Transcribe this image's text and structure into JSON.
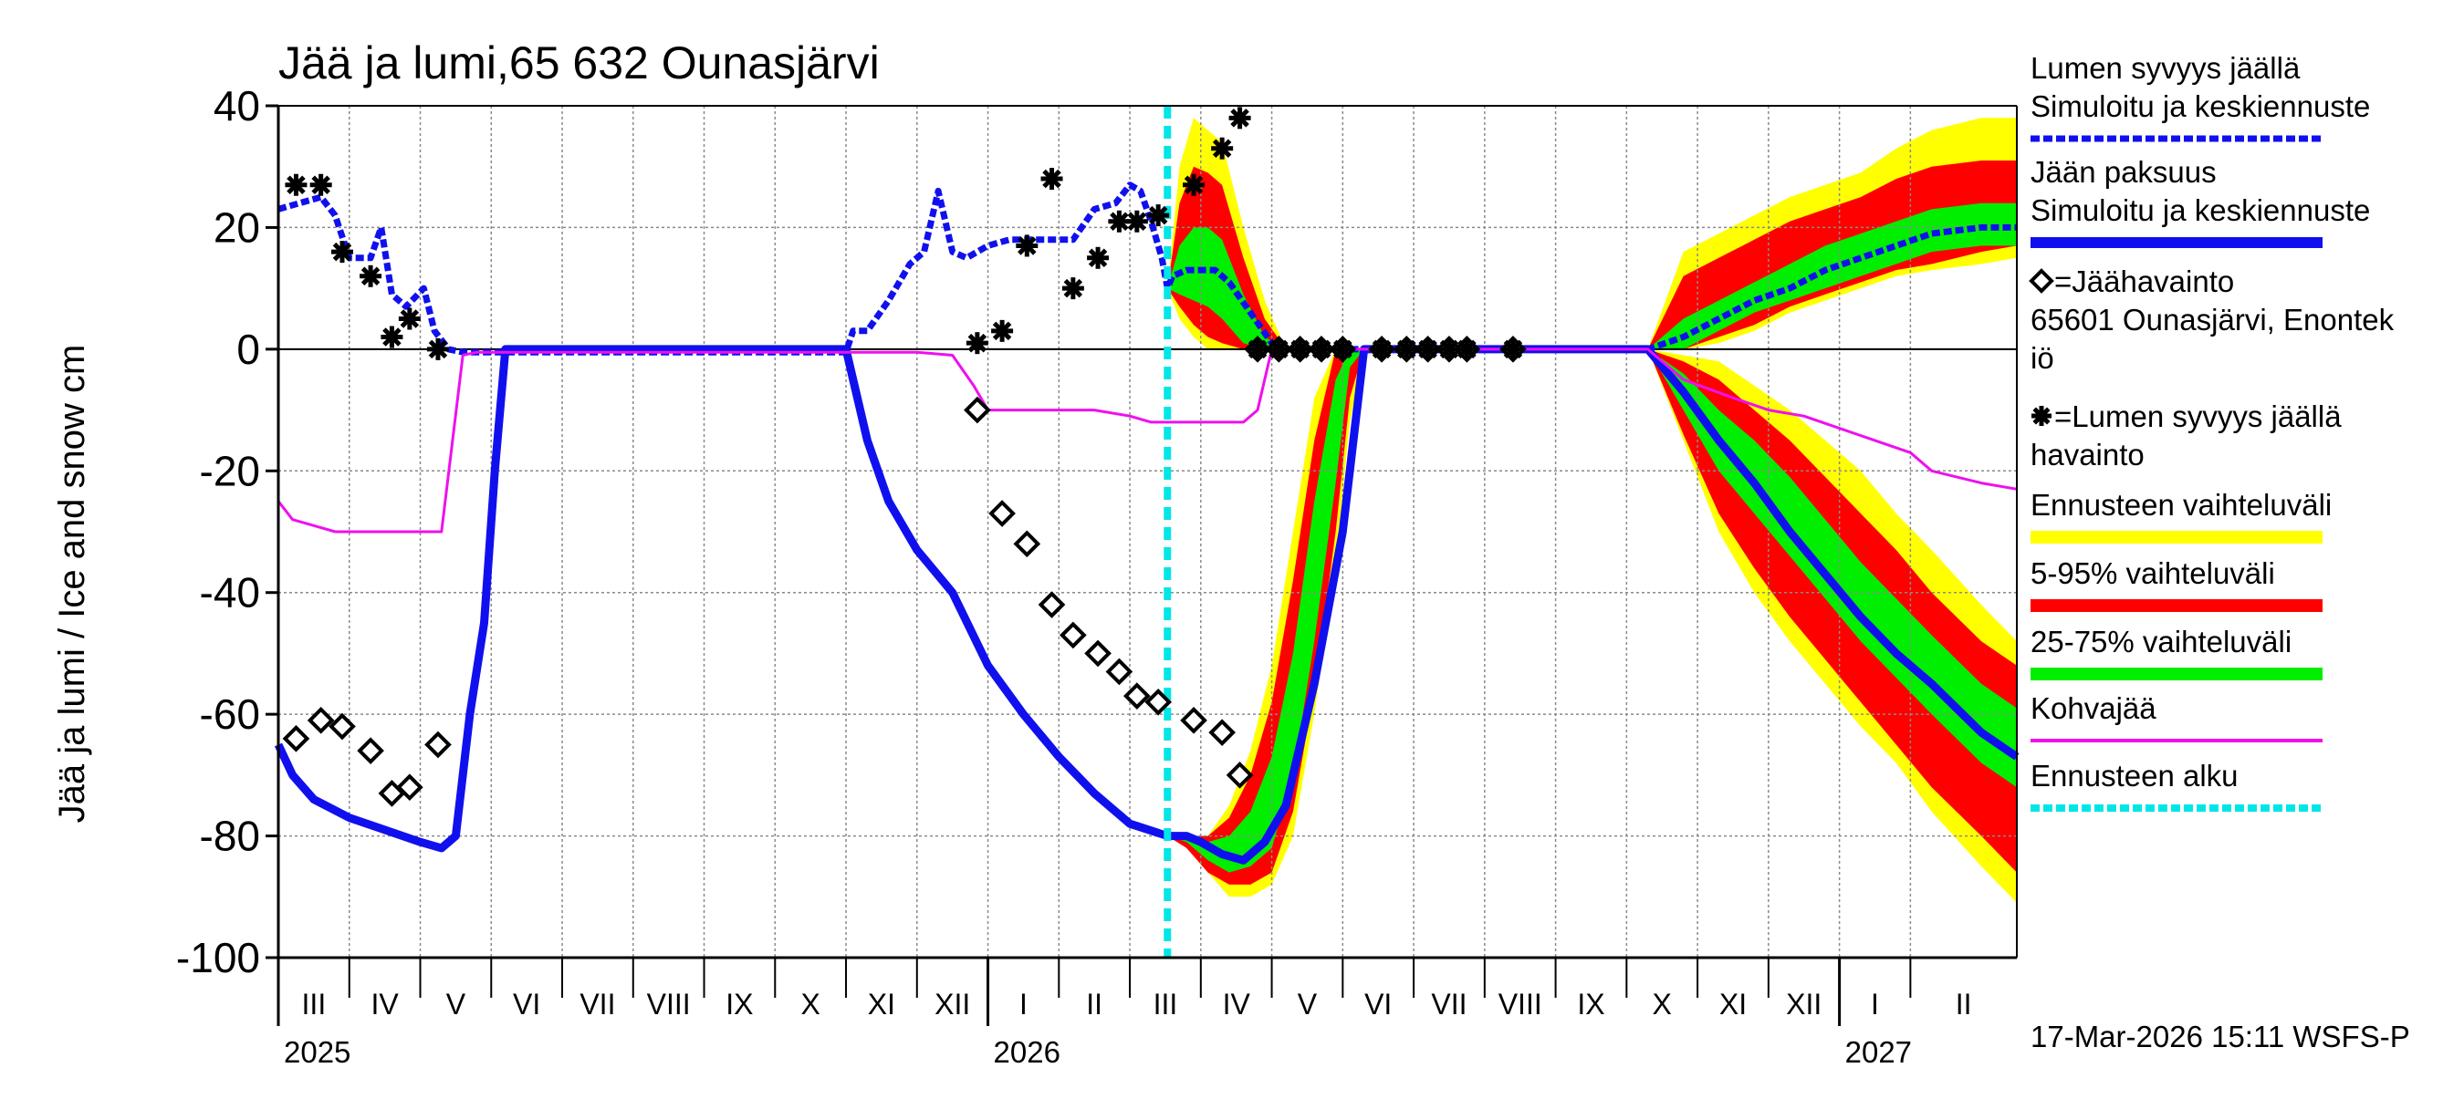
{
  "chart_data": {
    "type": "line",
    "title": "Jää ja lumi,65 632 Ounasjärvi",
    "ylabel": "Jää ja lumi / Ice and snow    cm",
    "xlabel": "",
    "ylim": [
      -100,
      40
    ],
    "yticks": [
      40,
      20,
      0,
      -20,
      -40,
      -60,
      -80,
      -100
    ],
    "x_unit": "months since 2025-03-01",
    "xlim": [
      0,
      24.5
    ],
    "forecast_start": 12.53,
    "months": [
      {
        "label": "III",
        "start": 0
      },
      {
        "label": "IV",
        "start": 1
      },
      {
        "label": "V",
        "start": 2
      },
      {
        "label": "VI",
        "start": 3
      },
      {
        "label": "VII",
        "start": 4
      },
      {
        "label": "VIII",
        "start": 5
      },
      {
        "label": "IX",
        "start": 6
      },
      {
        "label": "X",
        "start": 7
      },
      {
        "label": "XI",
        "start": 8
      },
      {
        "label": "XII",
        "start": 9
      },
      {
        "label": "I",
        "start": 10
      },
      {
        "label": "II",
        "start": 11
      },
      {
        "label": "III",
        "start": 12
      },
      {
        "label": "IV",
        "start": 13
      },
      {
        "label": "V",
        "start": 14
      },
      {
        "label": "VI",
        "start": 15
      },
      {
        "label": "VII",
        "start": 16
      },
      {
        "label": "VIII",
        "start": 17
      },
      {
        "label": "IX",
        "start": 18
      },
      {
        "label": "X",
        "start": 19
      },
      {
        "label": "XI",
        "start": 20
      },
      {
        "label": "XII",
        "start": 21
      },
      {
        "label": "I",
        "start": 22
      },
      {
        "label": "II",
        "start": 23
      }
    ],
    "years": [
      {
        "label": "2025",
        "at": 0
      },
      {
        "label": "2026",
        "at": 10
      },
      {
        "label": "2027",
        "at": 22
      }
    ],
    "footer": "17-Mar-2026 15:11 WSFS-P",
    "legend": [
      {
        "key": "snow_sim",
        "text": [
          "Lumen syvyys jäällä",
          "Simuloitu ja keskiennuste"
        ]
      },
      {
        "key": "ice_sim",
        "text": [
          "Jään paksuus",
          "Simuloitu ja keskiennuste"
        ]
      },
      {
        "key": "ice_obs",
        "text": [
          "=Jäähavainto",
          "65601 Ounasjärvi, Enontek",
          "iö"
        ]
      },
      {
        "key": "snow_obs",
        "text": [
          "=Lumen syvyys jäällä",
          "havainto"
        ]
      },
      {
        "key": "range_full",
        "text": [
          "Ennusteen vaihteluväli"
        ]
      },
      {
        "key": "range_5_95",
        "text": [
          "5-95% vaihteluväli"
        ]
      },
      {
        "key": "range_25_75",
        "text": [
          "25-75% vaihteluväli"
        ]
      },
      {
        "key": "kohva",
        "text": [
          "Kohvajää"
        ]
      },
      {
        "key": "fc_start",
        "text": [
          "Ennusteen alku"
        ]
      }
    ],
    "series": [
      {
        "name": "Lumen syvyys jäällä, simuloitu ja keskiennuste",
        "key": "snow_sim",
        "color": "#1010ee",
        "x": [
          0,
          0.3,
          0.6,
          0.8,
          1.0,
          1.3,
          1.45,
          1.6,
          1.8,
          2.05,
          2.2,
          2.4,
          2.6,
          2.8,
          3.0,
          8.0,
          8.1,
          8.3,
          8.6,
          8.9,
          9.1,
          9.3,
          9.5,
          9.7,
          10.0,
          10.3,
          10.6,
          10.9,
          11.2,
          11.5,
          11.8,
          12.0,
          12.15,
          12.3,
          12.45,
          12.53,
          12.6,
          12.8,
          13.0,
          13.2,
          13.4,
          13.7,
          14.0,
          14.2,
          15.0,
          19.3,
          19.8,
          20.3,
          20.8,
          21.3,
          21.8,
          22.3,
          22.8,
          23.3,
          24.0,
          24.5
        ],
        "y": [
          23,
          24,
          25,
          22,
          15,
          15,
          20,
          9,
          7,
          10,
          3,
          0,
          -0.5,
          -0.5,
          -0.5,
          -0.5,
          3,
          3,
          8,
          14,
          16,
          26,
          16,
          15,
          17,
          18,
          18,
          18,
          18,
          23,
          24,
          27,
          26,
          21,
          15,
          10,
          12,
          13,
          13,
          13,
          11,
          6,
          1,
          0,
          0,
          0,
          2,
          5,
          8,
          10,
          13,
          15,
          17,
          19,
          20,
          20
        ]
      },
      {
        "name": "Jään paksuus, simuloitu ja keskiennuste",
        "key": "ice_sim",
        "color": "#1010ee",
        "x": [
          0,
          0.2,
          0.5,
          1.0,
          1.5,
          2.0,
          2.3,
          2.5,
          2.7,
          2.9,
          3.05,
          3.2,
          8.0,
          8.1,
          8.3,
          8.6,
          9.0,
          9.5,
          10.0,
          10.5,
          11.0,
          11.5,
          12.0,
          12.53,
          12.8,
          13.0,
          13.3,
          13.6,
          13.9,
          14.2,
          14.6,
          15.0,
          15.3,
          19.3,
          19.8,
          20.3,
          20.8,
          21.3,
          21.8,
          22.3,
          22.8,
          23.3,
          24.0,
          24.5
        ],
        "y": [
          -65,
          -70,
          -74,
          -77,
          -79,
          -81,
          -82,
          -80,
          -60,
          -45,
          -20,
          0,
          0,
          -5,
          -15,
          -25,
          -33,
          -40,
          -52,
          -60,
          -67,
          -73,
          -78,
          -80,
          -80,
          -81,
          -83,
          -84,
          -81,
          -75,
          -55,
          -30,
          0,
          0,
          -7,
          -15,
          -22,
          -30,
          -37,
          -44,
          -50,
          -55,
          -63,
          -67
        ]
      },
      {
        "name": "Kohvajää",
        "key": "kohva",
        "color": "#ee10ee",
        "x": [
          0,
          0.2,
          0.5,
          0.8,
          1.0,
          2.0,
          2.3,
          2.6,
          2.8,
          3.0,
          8.0,
          9.0,
          9.5,
          9.8,
          10.0,
          10.5,
          11.0,
          11.5,
          12.0,
          12.3,
          13.0,
          13.6,
          13.8,
          14.0,
          19.3,
          19.8,
          20.5,
          21.0,
          21.5,
          22.0,
          22.5,
          23.0,
          23.3,
          24.0,
          24.5
        ],
        "y": [
          -25,
          -28,
          -29,
          -30,
          -30,
          -30,
          -30,
          -1,
          -0.5,
          -0.5,
          -0.5,
          -0.5,
          -1,
          -6,
          -10,
          -10,
          -10,
          -10,
          -11,
          -12,
          -12,
          -12,
          -10,
          0,
          0,
          -5,
          -8,
          -10,
          -11,
          -13,
          -15,
          -17,
          -20,
          -22,
          -23
        ]
      }
    ],
    "ice_observations": {
      "label": "Jäähavainto",
      "x": [
        0.25,
        0.6,
        0.9,
        1.3,
        1.6,
        1.85,
        2.25,
        9.85,
        10.2,
        10.55,
        10.9,
        11.2,
        11.55,
        11.85,
        12.1,
        12.4,
        12.9,
        13.3,
        13.55,
        13.8,
        14.1,
        14.4,
        14.7,
        15.0,
        15.55,
        15.9,
        16.2,
        16.5,
        16.75,
        17.4
      ],
      "y": [
        -64,
        -61,
        -62,
        -66,
        -73,
        -72,
        -65,
        -10,
        -27,
        -32,
        -42,
        -47,
        -50,
        -53,
        -57,
        -58,
        -61,
        -63,
        -70,
        0,
        0,
        0,
        0,
        0,
        0,
        0,
        0,
        0,
        0,
        0
      ]
    },
    "snow_observations": {
      "label": "Lumen syvyys jäällä havainto",
      "x": [
        0.25,
        0.6,
        0.9,
        1.3,
        1.6,
        1.85,
        2.25,
        9.85,
        10.2,
        10.55,
        10.9,
        11.2,
        11.55,
        11.85,
        12.1,
        12.4,
        12.9,
        13.3,
        13.55,
        13.8,
        14.1,
        14.4,
        14.7,
        15.0,
        15.55,
        15.9,
        16.2,
        16.5,
        16.75,
        17.4
      ],
      "y": [
        27,
        27,
        16,
        12,
        2,
        5,
        0,
        1,
        3,
        17,
        28,
        10,
        15,
        21,
        21,
        22,
        27,
        33,
        38,
        0,
        0,
        0,
        0,
        0,
        0,
        0,
        0,
        0,
        0,
        0
      ]
    },
    "ranges": [
      {
        "name": "Ennusteen vaihteluväli",
        "key": "range_full",
        "color": "#ffff00"
      },
      {
        "name": "5-95% vaihteluväli",
        "key": "range_5_95",
        "color": "#ff0000"
      },
      {
        "name": "25-75% vaihteluväli",
        "key": "range_25_75",
        "color": "#00ee00"
      }
    ],
    "ice_fc_bands": {
      "x": [
        12.53,
        12.8,
        13.1,
        13.4,
        13.7,
        14.0,
        14.3,
        14.6,
        14.9,
        15.1,
        15.3
      ],
      "full_lo": [
        -80,
        -82,
        -86,
        -90,
        -90,
        -88,
        -80,
        -60,
        -35,
        -12,
        0
      ],
      "full_hi": [
        -80,
        -80,
        -80,
        -75,
        -66,
        -52,
        -30,
        -8,
        0,
        0,
        0
      ],
      "p5_lo": [
        -80,
        -82,
        -86,
        -88,
        -88,
        -86,
        -76,
        -56,
        -30,
        -8,
        0
      ],
      "p5_hi": [
        -80,
        -80,
        -80,
        -77,
        -70,
        -58,
        -38,
        -15,
        0,
        0,
        0
      ],
      "p25_lo": [
        -80,
        -81,
        -84,
        -86,
        -85,
        -82,
        -70,
        -48,
        -22,
        -3,
        0
      ],
      "p25_hi": [
        -80,
        -80,
        -81,
        -80,
        -76,
        -67,
        -50,
        -25,
        -5,
        0,
        0
      ]
    },
    "snow_fc_bands": {
      "x": [
        12.53,
        12.7,
        12.9,
        13.1,
        13.3,
        13.6,
        13.9,
        14.2,
        14.5
      ],
      "full_lo": [
        10,
        5,
        2,
        0,
        0,
        0,
        0,
        0,
        0
      ],
      "full_hi": [
        10,
        30,
        38,
        36,
        34,
        20,
        8,
        0,
        0
      ],
      "p5_lo": [
        10,
        7,
        4,
        2,
        1,
        0,
        0,
        0,
        0
      ],
      "p5_hi": [
        10,
        24,
        30,
        29,
        27,
        15,
        5,
        0,
        0
      ],
      "p25_lo": [
        10,
        9,
        8,
        7,
        5,
        1,
        0,
        0,
        0
      ],
      "p25_hi": [
        10,
        17,
        20,
        20,
        18,
        9,
        2,
        0,
        0
      ]
    },
    "snow_fc_bands_2027": {
      "x": [
        19.3,
        19.8,
        20.3,
        20.8,
        21.3,
        21.8,
        22.3,
        22.8,
        23.3,
        24.0,
        24.5
      ],
      "full_lo": [
        0,
        0,
        1,
        3,
        6,
        8,
        10,
        12,
        13,
        14,
        15
      ],
      "full_hi": [
        0,
        16,
        19,
        22,
        25,
        27,
        29,
        33,
        36,
        38,
        38
      ],
      "p5_lo": [
        0,
        0,
        2,
        4,
        7,
        9,
        11,
        13,
        14,
        16,
        17
      ],
      "p5_hi": [
        0,
        12,
        15,
        18,
        21,
        23,
        25,
        28,
        30,
        31,
        31
      ],
      "p25_lo": [
        0,
        0,
        3,
        6,
        8,
        10,
        12,
        14,
        16,
        17,
        17
      ],
      "p25_hi": [
        0,
        5,
        8,
        11,
        14,
        17,
        19,
        21,
        23,
        24,
        24
      ]
    },
    "ice_fc_bands_2027": {
      "x": [
        19.3,
        19.8,
        20.3,
        20.8,
        21.3,
        21.8,
        22.3,
        22.8,
        23.3,
        24.0,
        24.5
      ],
      "full_lo": [
        0,
        -15,
        -30,
        -40,
        -48,
        -55,
        -62,
        -68,
        -76,
        -85,
        -91
      ],
      "full_hi": [
        0,
        -1,
        -2,
        -6,
        -10,
        -15,
        -20,
        -27,
        -33,
        -42,
        -48
      ],
      "p5_lo": [
        0,
        -14,
        -27,
        -36,
        -44,
        -51,
        -58,
        -65,
        -72,
        -80,
        -86
      ],
      "p5_hi": [
        0,
        -2,
        -5,
        -10,
        -15,
        -21,
        -27,
        -33,
        -40,
        -48,
        -52
      ],
      "p25_lo": [
        0,
        -10,
        -20,
        -27,
        -34,
        -41,
        -48,
        -54,
        -60,
        -68,
        -72
      ],
      "p25_hi": [
        0,
        -4,
        -10,
        -15,
        -21,
        -28,
        -35,
        -41,
        -47,
        -55,
        -59
      ]
    }
  }
}
